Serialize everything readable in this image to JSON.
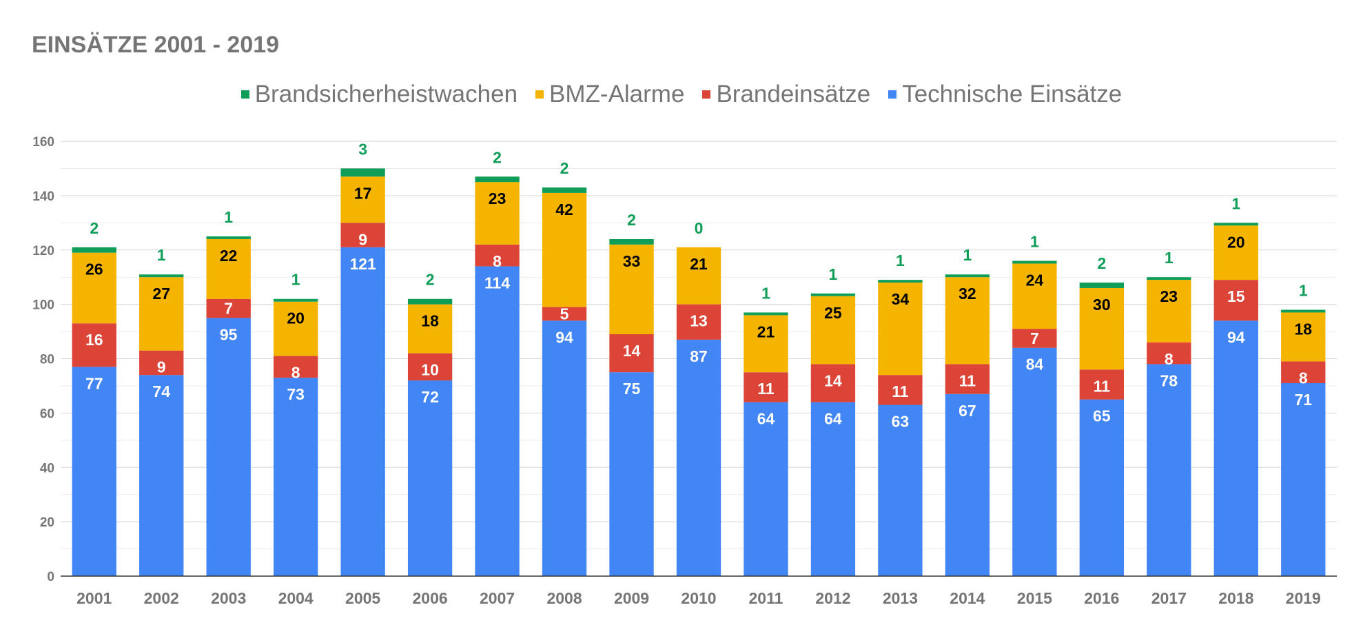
{
  "chart_data": {
    "type": "bar",
    "stacked": true,
    "title": "EINSÄTZE 2001 - 2019",
    "xlabel": "",
    "ylabel": "",
    "ylim": [
      0,
      160
    ],
    "yticks": [
      0,
      20,
      40,
      60,
      80,
      100,
      120,
      140,
      160
    ],
    "grid": true,
    "legend_position": "top",
    "categories": [
      "2001",
      "2002",
      "2003",
      "2004",
      "2005",
      "2006",
      "2007",
      "2008",
      "2009",
      "2010",
      "2011",
      "2012",
      "2013",
      "2014",
      "2015",
      "2016",
      "2017",
      "2018",
      "2019"
    ],
    "series": [
      {
        "name": "Technische Einsätze",
        "color": "#4285f4",
        "label_color": "#ffffff",
        "values": [
          77,
          74,
          95,
          73,
          121,
          72,
          114,
          94,
          75,
          87,
          64,
          64,
          63,
          67,
          84,
          65,
          78,
          94,
          71
        ]
      },
      {
        "name": "Brandeinsätze",
        "color": "#db4437",
        "label_color": "#ffffff",
        "values": [
          16,
          9,
          7,
          8,
          9,
          10,
          8,
          5,
          14,
          13,
          11,
          14,
          11,
          11,
          7,
          11,
          8,
          15,
          8
        ]
      },
      {
        "name": "BMZ-Alarme",
        "color": "#f4b400",
        "label_color": "#000000",
        "values": [
          26,
          27,
          22,
          20,
          17,
          18,
          23,
          42,
          33,
          21,
          21,
          25,
          34,
          32,
          24,
          30,
          23,
          20,
          18
        ]
      },
      {
        "name": "Brandsicherheistwachen",
        "color": "#0f9d58",
        "label_color": "#0f9d58",
        "values": [
          2,
          1,
          1,
          1,
          3,
          2,
          2,
          2,
          2,
          0,
          1,
          1,
          1,
          1,
          1,
          2,
          1,
          1,
          1
        ]
      }
    ],
    "legend_order": [
      "Brandsicherheistwachen",
      "BMZ-Alarme",
      "Brandeinsätze",
      "Technische Einsätze"
    ]
  }
}
